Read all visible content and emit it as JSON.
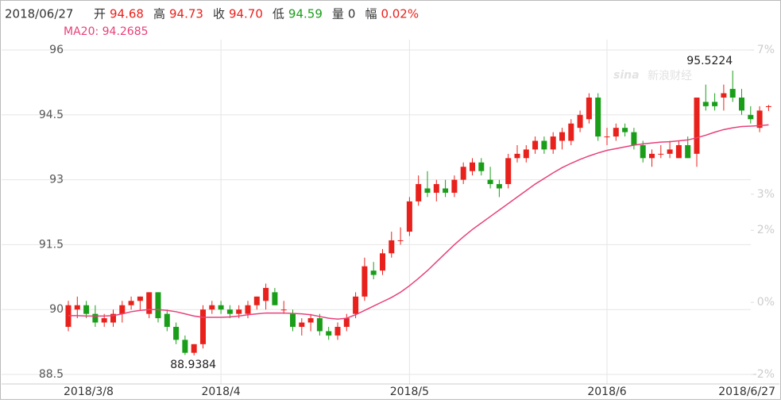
{
  "chart_data": {
    "type": "candlestick",
    "header": {
      "date": "2018/06/27",
      "items": [
        {
          "label": "开",
          "value": "94.68"
        },
        {
          "label": "高",
          "value": "94.73"
        },
        {
          "label": "收",
          "value": "94.70"
        },
        {
          "label": "低",
          "value": "94.59"
        },
        {
          "label": "量",
          "value": "0"
        },
        {
          "label": "幅",
          "value": "0.02%"
        }
      ]
    },
    "ma_label": "MA20: 94.2685",
    "high_label": "95.5224",
    "low_label": "88.9384",
    "watermark": "新浪财经",
    "watermark_logo": "sina",
    "categories": [
      "2018/3/8",
      null,
      null,
      null,
      null,
      null,
      null,
      null,
      null,
      null,
      null,
      null,
      null,
      null,
      null,
      null,
      null,
      "2018/4",
      null,
      null,
      null,
      null,
      null,
      null,
      null,
      null,
      null,
      null,
      null,
      null,
      null,
      null,
      null,
      null,
      null,
      null,
      null,
      null,
      "2018/5",
      null,
      null,
      null,
      null,
      null,
      null,
      null,
      null,
      null,
      null,
      null,
      null,
      null,
      null,
      null,
      null,
      null,
      null,
      null,
      null,
      null,
      "2018/6",
      null,
      null,
      null,
      null,
      null,
      null,
      null,
      null,
      null,
      null,
      null,
      null,
      null,
      null,
      null,
      null,
      null,
      "2018/6/27"
    ],
    "open": [
      89.6,
      90.0,
      90.1,
      89.9,
      89.7,
      89.7,
      89.9,
      90.1,
      90.2,
      89.9,
      90.4,
      89.9,
      89.6,
      89.3,
      89.0,
      89.2,
      90.0,
      90.1,
      90.0,
      89.9,
      89.9,
      90.1,
      90.2,
      90.4,
      90.0,
      89.9,
      89.6,
      89.7,
      89.8,
      89.5,
      89.4,
      89.6,
      89.9,
      90.3,
      90.9,
      90.9,
      91.3,
      91.6,
      91.8,
      92.5,
      92.8,
      92.7,
      92.8,
      92.7,
      93.0,
      93.2,
      93.4,
      93.0,
      92.9,
      92.9,
      93.5,
      93.5,
      93.7,
      93.9,
      93.7,
      93.9,
      93.9,
      94.2,
      94.4,
      94.9,
      94.0,
      94.0,
      94.2,
      94.1,
      93.8,
      93.5,
      93.6,
      93.6,
      93.5,
      93.8,
      93.6,
      94.8,
      94.8,
      94.9,
      95.1,
      94.9,
      94.5,
      94.2,
      94.68
    ],
    "high": [
      90.2,
      90.3,
      90.2,
      90.1,
      89.9,
      90.0,
      90.2,
      90.3,
      90.3,
      90.4,
      90.4,
      90.0,
      89.7,
      89.4,
      89.2,
      90.1,
      90.2,
      90.2,
      90.1,
      90.1,
      90.2,
      90.3,
      90.6,
      90.5,
      90.2,
      90.0,
      89.8,
      89.9,
      89.9,
      89.6,
      89.7,
      89.9,
      90.4,
      91.2,
      91.1,
      91.4,
      91.8,
      91.9,
      92.6,
      93.1,
      93.2,
      93.0,
      93.0,
      93.1,
      93.4,
      93.5,
      93.5,
      93.3,
      93.0,
      93.6,
      93.8,
      93.8,
      94.0,
      94.0,
      94.1,
      94.2,
      94.4,
      94.6,
      95.0,
      95.0,
      94.2,
      94.3,
      94.3,
      94.2,
      93.9,
      93.7,
      93.8,
      93.9,
      93.9,
      94.0,
      94.9,
      95.2,
      95.0,
      95.2,
      95.5224,
      95.1,
      94.7,
      94.7,
      94.73
    ],
    "low": [
      89.5,
      89.8,
      89.8,
      89.6,
      89.6,
      89.6,
      89.7,
      90.0,
      90.0,
      89.8,
      89.7,
      89.5,
      89.2,
      88.95,
      88.9384,
      89.1,
      89.9,
      89.9,
      89.8,
      89.8,
      89.8,
      90.0,
      90.0,
      90.1,
      89.9,
      89.5,
      89.4,
      89.5,
      89.4,
      89.3,
      89.3,
      89.5,
      89.8,
      90.2,
      90.7,
      90.8,
      91.2,
      91.5,
      91.7,
      92.4,
      92.6,
      92.5,
      92.6,
      92.6,
      92.9,
      93.1,
      93.1,
      92.8,
      92.6,
      92.8,
      93.4,
      93.4,
      93.6,
      93.6,
      93.6,
      93.7,
      93.8,
      94.1,
      94.3,
      93.9,
      93.8,
      93.9,
      94.0,
      93.7,
      93.4,
      93.3,
      93.5,
      93.5,
      93.5,
      93.5,
      93.3,
      94.6,
      94.6,
      94.6,
      94.8,
      94.5,
      94.3,
      94.1,
      94.59
    ],
    "close": [
      90.1,
      90.1,
      89.9,
      89.7,
      89.8,
      89.9,
      90.1,
      90.2,
      90.3,
      90.4,
      89.8,
      89.6,
      89.3,
      89.0,
      89.2,
      90.0,
      90.1,
      90.0,
      89.9,
      90.0,
      90.1,
      90.3,
      90.5,
      90.1,
      90.0,
      89.6,
      89.7,
      89.8,
      89.5,
      89.4,
      89.6,
      89.8,
      90.3,
      91.0,
      90.8,
      91.3,
      91.6,
      91.6,
      92.5,
      92.9,
      92.7,
      92.9,
      92.7,
      93.0,
      93.3,
      93.4,
      93.2,
      92.9,
      92.8,
      93.5,
      93.6,
      93.7,
      93.9,
      93.7,
      94.0,
      94.1,
      94.3,
      94.5,
      94.9,
      94.0,
      94.0,
      94.2,
      94.1,
      93.8,
      93.5,
      93.6,
      93.6,
      93.7,
      93.8,
      93.5,
      94.9,
      94.7,
      94.7,
      95.0,
      94.9,
      94.6,
      94.4,
      94.6,
      94.7
    ],
    "ma20": [
      89.86,
      89.86,
      89.85,
      89.85,
      89.85,
      89.86,
      89.9,
      89.95,
      89.98,
      90.0,
      90.0,
      89.98,
      89.95,
      89.9,
      89.85,
      89.82,
      89.82,
      89.82,
      89.83,
      89.85,
      89.88,
      89.9,
      89.92,
      89.92,
      89.92,
      89.91,
      89.9,
      89.88,
      89.84,
      89.8,
      89.78,
      89.8,
      89.88,
      89.98,
      90.08,
      90.18,
      90.28,
      90.4,
      90.55,
      90.72,
      90.9,
      91.1,
      91.3,
      91.5,
      91.68,
      91.85,
      92.0,
      92.15,
      92.3,
      92.45,
      92.6,
      92.75,
      92.9,
      93.03,
      93.16,
      93.28,
      93.38,
      93.47,
      93.55,
      93.62,
      93.68,
      93.72,
      93.76,
      93.8,
      93.83,
      93.85,
      93.87,
      93.88,
      93.9,
      93.92,
      93.97,
      94.03,
      94.1,
      94.16,
      94.2,
      94.23,
      94.24,
      94.25,
      94.2685
    ],
    "up_color": "#e8211c",
    "down_color": "#1a9e1a",
    "ma_color": "#e8407a",
    "ylim": [
      88.5,
      96
    ],
    "yticks": [
      96,
      94.5,
      93,
      91.5,
      90,
      88.5
    ],
    "y2lim": [
      -2,
      7
    ],
    "y2ticks": [
      {
        "value": 7,
        "label": "7%"
      },
      {
        "value": 3,
        "label": "3%"
      },
      {
        "value": 2,
        "label": "2%"
      },
      {
        "value": 0,
        "label": "0%"
      },
      {
        "value": -2,
        "label": "-2%"
      }
    ],
    "grid": true
  }
}
